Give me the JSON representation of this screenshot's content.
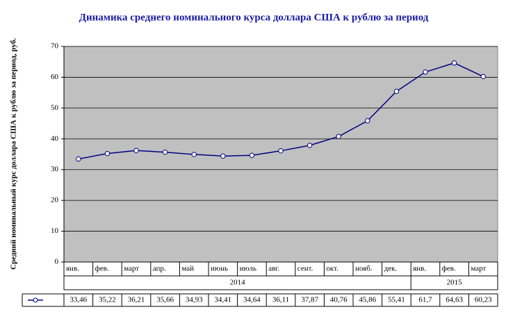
{
  "chart_data": {
    "type": "line",
    "title": "Динамика среднего номинального курса доллара США к рублю за период",
    "y_label": "Средний номинальный курс доллара США к рублю за период, руб.",
    "category_groups": [
      {
        "name": "2014",
        "categories": [
          "янв.",
          "фев.",
          "март",
          "апр.",
          "май",
          "июнь",
          "июль",
          "авг.",
          "сент.",
          "окт.",
          "нояб.",
          "дек."
        ]
      },
      {
        "name": "2015",
        "categories": [
          "янв.",
          "фев.",
          "март"
        ]
      }
    ],
    "series": [
      {
        "color": "#000080",
        "values": [
          33.46,
          35.22,
          36.21,
          35.66,
          34.93,
          34.41,
          34.64,
          36.11,
          37.87,
          40.76,
          45.86,
          55.41,
          61.7,
          64.63,
          60.23
        ],
        "value_labels": [
          "33,46",
          "35,22",
          "36,21",
          "35,66",
          "34,93",
          "34,41",
          "34,64",
          "36,11",
          "37,87",
          "40,76",
          "45,86",
          "55,41",
          "61,7",
          "64,63",
          "60,23"
        ]
      }
    ],
    "ylim": [
      0,
      70
    ],
    "yticks": [
      0,
      10,
      20,
      30,
      40,
      50,
      60,
      70
    ],
    "grid": true,
    "plot_background": "#c0c0c0"
  }
}
